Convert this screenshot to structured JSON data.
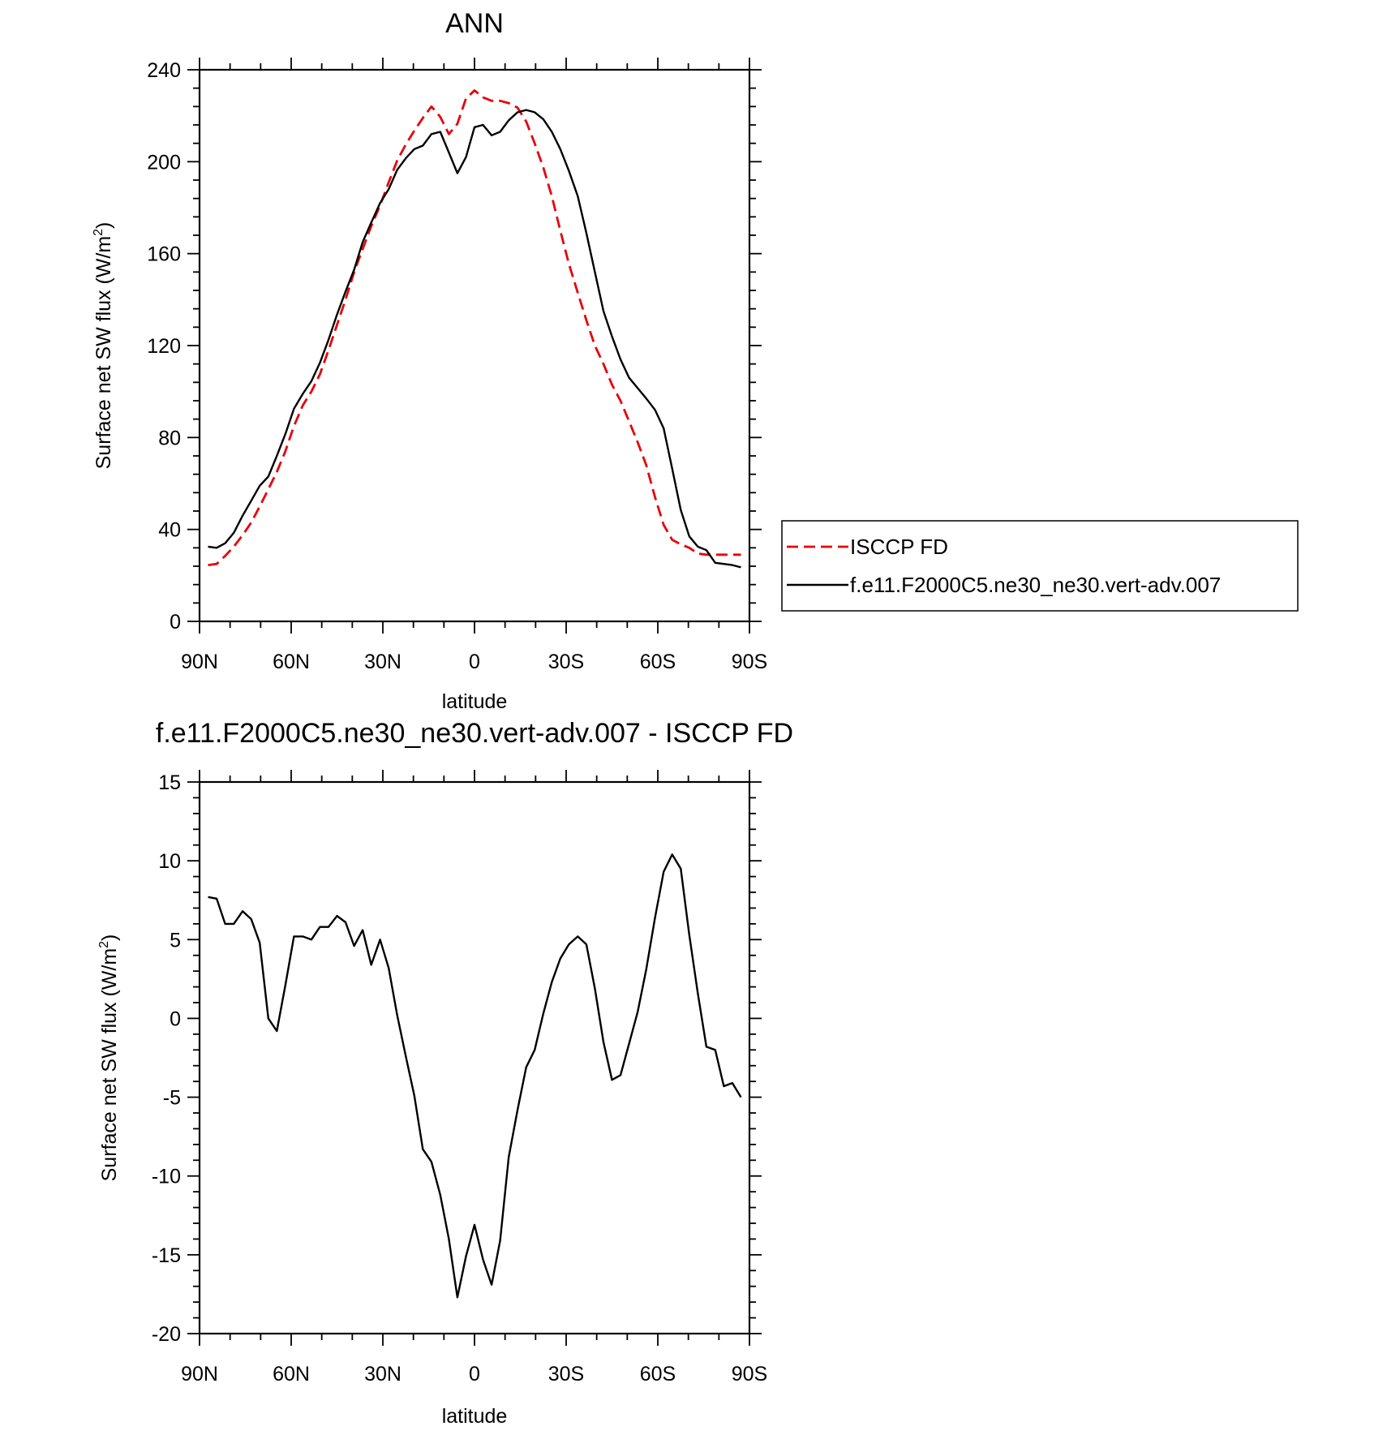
{
  "chart_data": [
    {
      "type": "line",
      "title": "ANN",
      "xlabel": "latitude",
      "ylabel": "Surface net SW flux (W/m",
      "ylabel_sup": "2",
      "ylabel_tail": ")",
      "x_direction": "north-to-south",
      "xlim": [
        90,
        -90
      ],
      "ylim": [
        0,
        240
      ],
      "xticks": [
        90,
        60,
        30,
        0,
        -30,
        -60,
        -90
      ],
      "xtick_labels": [
        "90N",
        "60N",
        "30N",
        "0",
        "30S",
        "60S",
        "90S"
      ],
      "yticks": [
        0,
        40,
        80,
        120,
        160,
        200,
        240
      ],
      "ytick_labels": [
        "0",
        "40",
        "80",
        "120",
        "160",
        "200",
        "240"
      ],
      "grid": false,
      "legend_position": "right, outside plot",
      "x": [
        87.2,
        84.4,
        81.6,
        78.8,
        75.9,
        73.1,
        70.3,
        67.5,
        64.7,
        61.9,
        59.1,
        56.2,
        53.4,
        50.6,
        47.8,
        45.0,
        42.2,
        39.4,
        36.6,
        33.8,
        30.9,
        28.1,
        25.3,
        22.5,
        19.7,
        16.9,
        14.1,
        11.2,
        8.4,
        5.6,
        2.8,
        0.0,
        -2.8,
        -5.6,
        -8.4,
        -11.2,
        -14.1,
        -16.9,
        -19.7,
        -22.5,
        -25.3,
        -28.1,
        -30.9,
        -33.8,
        -36.6,
        -39.4,
        -42.2,
        -45.0,
        -47.8,
        -50.6,
        -53.4,
        -56.2,
        -59.1,
        -61.9,
        -64.7,
        -67.5,
        -70.3,
        -73.1,
        -75.9,
        -78.8,
        -81.6,
        -84.4,
        -87.2
      ],
      "series": [
        {
          "name": "ISCCP FD",
          "color": "#e8000b",
          "dash": "dashed",
          "values": [
            24.5,
            25.0,
            28.5,
            32.5,
            37.5,
            43.0,
            50.0,
            57.5,
            65.0,
            74.0,
            85.0,
            94.0,
            100.0,
            107.5,
            118.0,
            129.0,
            140.0,
            152.0,
            162.0,
            172.0,
            181.0,
            191.0,
            200.5,
            207.5,
            213.5,
            219.0,
            224.0,
            219.5,
            212.0,
            216.5,
            227.5,
            231.0,
            228.0,
            226.5,
            226.5,
            225.5,
            223.5,
            217.5,
            208.0,
            197.5,
            185.0,
            170.0,
            155.5,
            143.0,
            131.0,
            120.0,
            112.0,
            103.0,
            96.0,
            87.0,
            78.0,
            68.0,
            54.0,
            42.0,
            35.5,
            33.5,
            32.0,
            29.5,
            29.0,
            29.0,
            29.0,
            29.0,
            29.0
          ]
        },
        {
          "name": "f.e11.F2000C5.ne30_ne30.vert-adv.007",
          "color": "#000000",
          "dash": "solid",
          "values": [
            32.5,
            32.0,
            34.0,
            38.5,
            46.0,
            52.5,
            59.0,
            63.0,
            72.0,
            81.5,
            92.5,
            99.0,
            104.5,
            112.5,
            122.5,
            133.5,
            143.5,
            153.0,
            165.0,
            173.5,
            182.0,
            188.0,
            196.5,
            201.5,
            205.5,
            207.0,
            212.0,
            213.0,
            204.0,
            195.0,
            202.0,
            215.0,
            216.0,
            211.5,
            213.0,
            218.0,
            221.5,
            222.5,
            221.5,
            218.5,
            213.0,
            205.5,
            196.0,
            185.0,
            169.0,
            152.0,
            135.0,
            124.0,
            114.0,
            106.0,
            101.5,
            97.0,
            92.0,
            84.0,
            66.5,
            48.5,
            37.0,
            32.5,
            31.0,
            25.5,
            25.0,
            24.5,
            23.5
          ]
        }
      ]
    },
    {
      "type": "line",
      "title": "f.e11.F2000C5.ne30_ne30.vert-adv.007 - ISCCP FD",
      "xlabel": "latitude",
      "ylabel": "Surface net SW flux (W/m",
      "ylabel_sup": "2",
      "ylabel_tail": ")",
      "x_direction": "north-to-south",
      "xlim": [
        90,
        -90
      ],
      "ylim": [
        -20,
        15
      ],
      "xticks": [
        90,
        60,
        30,
        0,
        -30,
        -60,
        -90
      ],
      "xtick_labels": [
        "90N",
        "60N",
        "30N",
        "0",
        "30S",
        "60S",
        "90S"
      ],
      "yticks": [
        -20,
        -15,
        -10,
        -5,
        0,
        5,
        10,
        15
      ],
      "ytick_labels": [
        "-20",
        "-15",
        "-10",
        "-5",
        "0",
        "5",
        "10",
        "15"
      ],
      "grid": false,
      "x": [
        87.2,
        84.4,
        81.6,
        78.8,
        75.9,
        73.1,
        70.3,
        67.5,
        64.7,
        61.9,
        59.1,
        56.2,
        53.4,
        50.6,
        47.8,
        45.0,
        42.2,
        39.4,
        36.6,
        33.8,
        30.9,
        28.1,
        25.3,
        22.5,
        19.7,
        16.9,
        14.1,
        11.2,
        8.4,
        5.6,
        2.8,
        0.0,
        -2.8,
        -5.6,
        -8.4,
        -11.2,
        -14.1,
        -16.9,
        -19.7,
        -22.5,
        -25.3,
        -28.1,
        -30.9,
        -33.8,
        -36.6,
        -39.4,
        -42.2,
        -45.0,
        -47.8,
        -50.6,
        -53.4,
        -56.2,
        -59.1,
        -61.9,
        -64.7,
        -67.5,
        -70.3,
        -73.1,
        -75.9,
        -78.8,
        -81.6,
        -84.4,
        -87.2
      ],
      "series": [
        {
          "color": "#000000",
          "dash": "solid",
          "values": [
            7.7,
            7.6,
            6.0,
            6.0,
            6.8,
            6.3,
            4.8,
            0.0,
            -0.8,
            2.1,
            5.2,
            5.2,
            5.0,
            5.8,
            5.8,
            6.5,
            6.1,
            4.6,
            5.6,
            3.4,
            5.0,
            3.2,
            0.2,
            -2.4,
            -4.9,
            -8.3,
            -9.1,
            -11.2,
            -14.0,
            -17.7,
            -15.1,
            -13.1,
            -15.3,
            -16.9,
            -14.1,
            -8.8,
            -5.8,
            -3.1,
            -2.0,
            0.3,
            2.3,
            3.8,
            4.7,
            5.2,
            4.7,
            1.9,
            -1.5,
            -3.9,
            -3.6,
            -1.6,
            0.4,
            3.1,
            6.4,
            9.3,
            10.4,
            9.5,
            5.3,
            1.6,
            -1.8,
            -2.0,
            -4.3,
            -4.1,
            -5.0
          ]
        }
      ]
    }
  ],
  "legend": {
    "items": [
      {
        "label": "ISCCP FD",
        "color": "#e8000b",
        "dash": "dashed"
      },
      {
        "label": "f.e11.F2000C5.ne30_ne30.vert-adv.007",
        "color": "#000000",
        "dash": "solid"
      }
    ]
  }
}
